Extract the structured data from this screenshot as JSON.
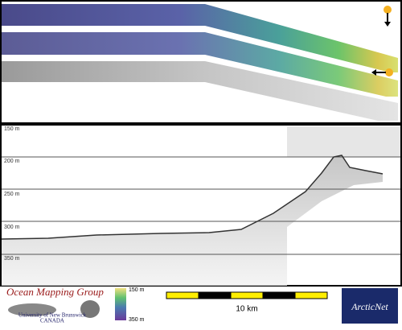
{
  "profile": {
    "depth_labels": [
      "150 m",
      "200 m",
      "250 m",
      "300 m",
      "350 m"
    ]
  },
  "footer": {
    "logo_title": "Ocean Mapping Group",
    "logo_subtitle": "University of New Brunswick",
    "logo_country": "CANADA",
    "colorbar_labels": [
      "150 m",
      "350 m"
    ],
    "scale_label": "10 km",
    "partner": "ArcticNet"
  }
}
